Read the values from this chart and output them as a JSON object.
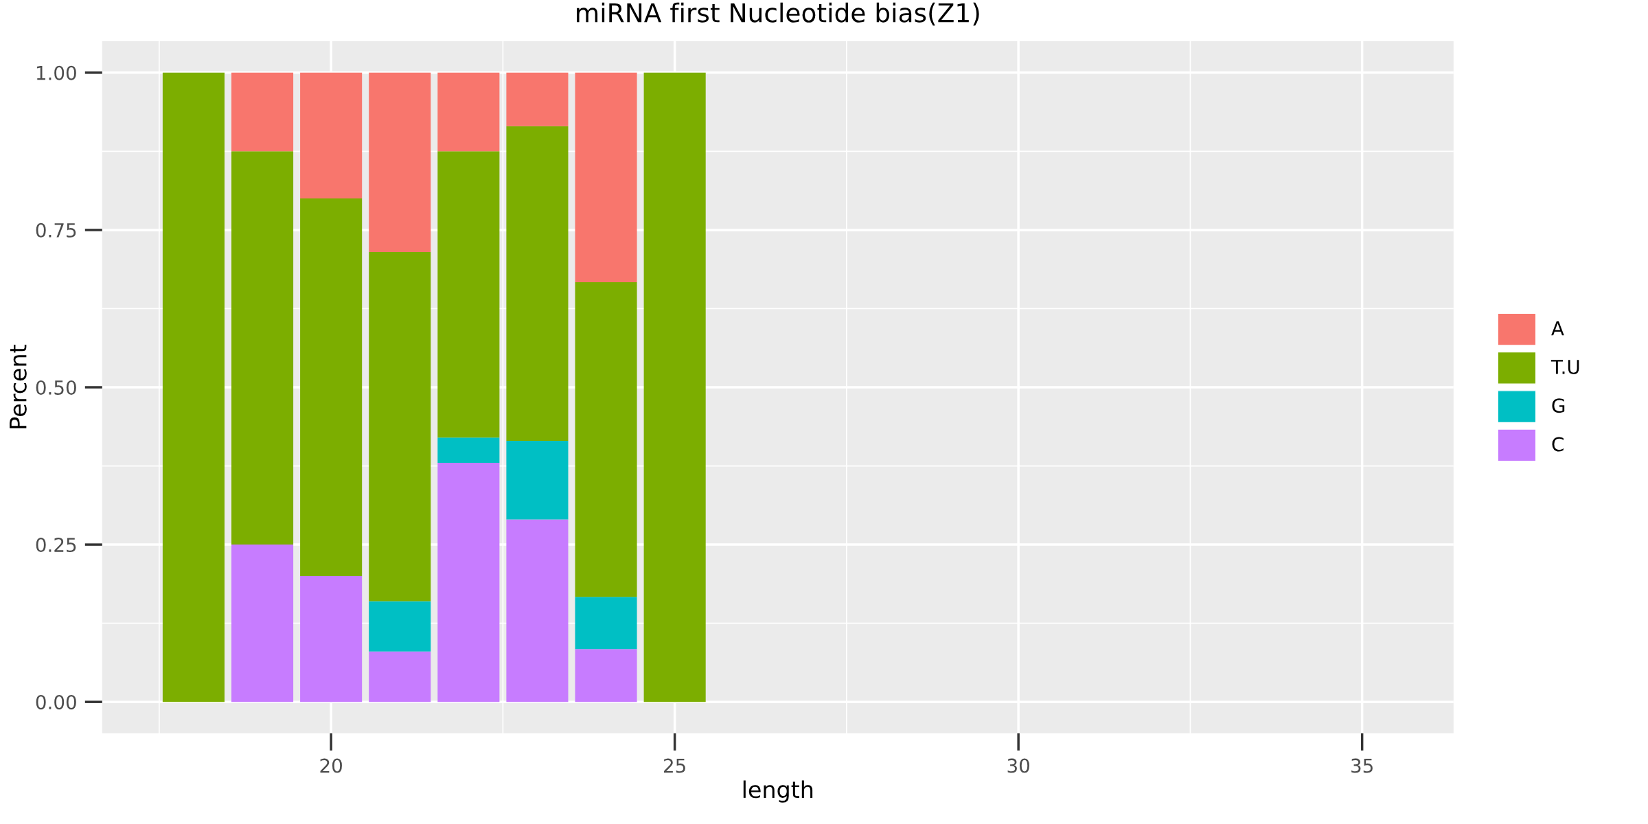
{
  "chart_data": {
    "type": "bar",
    "title": "miRNA first Nucleotide bias(Z1)",
    "xlabel": "length",
    "ylabel": "Percent",
    "x": [
      18,
      19,
      20,
      21,
      22,
      23,
      24,
      25
    ],
    "stacked": true,
    "series": [
      {
        "name": "C",
        "color": "#c77cff",
        "values": [
          0,
          0.25,
          0.2,
          0.08,
          0.38,
          0.29,
          0.084,
          0
        ]
      },
      {
        "name": "G",
        "color": "#00bfc4",
        "values": [
          0,
          0,
          0,
          0.08,
          0.04,
          0.125,
          0.083,
          0
        ]
      },
      {
        "name": "T.U",
        "color": "#7cae00",
        "values": [
          1,
          0.625,
          0.6,
          0.555,
          0.455,
          0.5,
          0.5,
          1
        ]
      },
      {
        "name": "A",
        "color": "#f8766d",
        "values": [
          0,
          0.125,
          0.2,
          0.285,
          0.125,
          0.085,
          0.333,
          0
        ]
      }
    ],
    "xlim": [
      16.67,
      36.33
    ],
    "xticks": [
      20,
      25,
      30,
      35
    ],
    "ylim": [
      -0.05,
      1.05
    ],
    "yticks": [
      {
        "value": 0,
        "label": "0.00"
      },
      {
        "value": 0.25,
        "label": "0.25"
      },
      {
        "value": 0.5,
        "label": "0.50"
      },
      {
        "value": 0.75,
        "label": "0.75"
      },
      {
        "value": 1,
        "label": "1.00"
      }
    ],
    "grid": true,
    "legend": "right"
  }
}
